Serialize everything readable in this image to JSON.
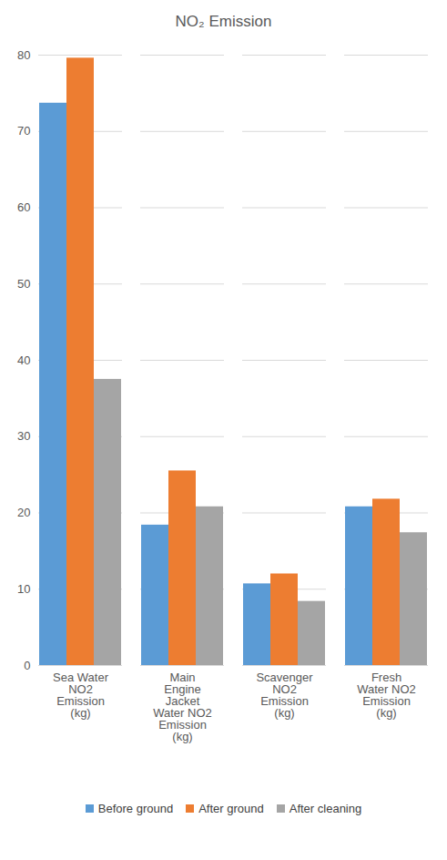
{
  "chart_data": {
    "type": "bar",
    "title": "NO₂ Emission",
    "categories": [
      "Sea Water NO2 Emission (kg)",
      "Main Engine Jacket Water NO2 Emission (kg)",
      "Scavenger NO2 Emission (kg)",
      "Fresh Water NO2 Emission (kg)"
    ],
    "series": [
      {
        "name": "Before ground",
        "color": "#5b9bd5",
        "values": [
          73.7,
          18.4,
          10.7,
          20.8
        ]
      },
      {
        "name": "After ground",
        "color": "#ed7d31",
        "values": [
          79.6,
          25.5,
          12,
          21.8
        ]
      },
      {
        "name": "After cleaning",
        "color": "#a5a5a5",
        "values": [
          37.5,
          20.8,
          8.4,
          17.4
        ]
      }
    ],
    "ylim": [
      0,
      80
    ],
    "yticks": [
      0,
      10,
      20,
      30,
      40,
      50,
      60,
      70,
      80
    ],
    "grid": true,
    "legend": "bottom"
  }
}
